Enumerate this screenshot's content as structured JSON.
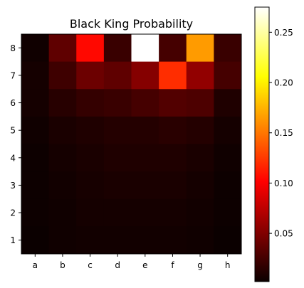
{
  "chart_data": {
    "type": "heatmap",
    "title": "Black King Probability",
    "xlabel": "",
    "ylabel": "",
    "x_categories": [
      "a",
      "b",
      "c",
      "d",
      "e",
      "f",
      "g",
      "h"
    ],
    "y_categories": [
      "8",
      "7",
      "6",
      "5",
      "4",
      "3",
      "2",
      "1"
    ],
    "values": [
      [
        0.004,
        0.035,
        0.105,
        0.02,
        0.275,
        0.025,
        0.165,
        0.02
      ],
      [
        0.006,
        0.022,
        0.04,
        0.035,
        0.05,
        0.12,
        0.055,
        0.025
      ],
      [
        0.006,
        0.013,
        0.018,
        0.02,
        0.025,
        0.03,
        0.028,
        0.01
      ],
      [
        0.004,
        0.008,
        0.01,
        0.012,
        0.012,
        0.014,
        0.012,
        0.006
      ],
      [
        0.003,
        0.006,
        0.008,
        0.01,
        0.01,
        0.01,
        0.008,
        0.004
      ],
      [
        0.003,
        0.005,
        0.007,
        0.008,
        0.008,
        0.008,
        0.006,
        0.003
      ],
      [
        0.003,
        0.004,
        0.006,
        0.006,
        0.006,
        0.006,
        0.005,
        0.003
      ],
      [
        0.002,
        0.004,
        0.005,
        0.005,
        0.005,
        0.005,
        0.004,
        0.002
      ]
    ],
    "colormap": "hot",
    "colorbar": {
      "range": [
        0.002,
        0.275
      ],
      "ticks": [
        0.05,
        0.1,
        0.15,
        0.2,
        0.25
      ],
      "tick_labels": [
        "0.05",
        "0.10",
        "0.15",
        "0.20",
        "0.25"
      ]
    },
    "grid": false
  }
}
